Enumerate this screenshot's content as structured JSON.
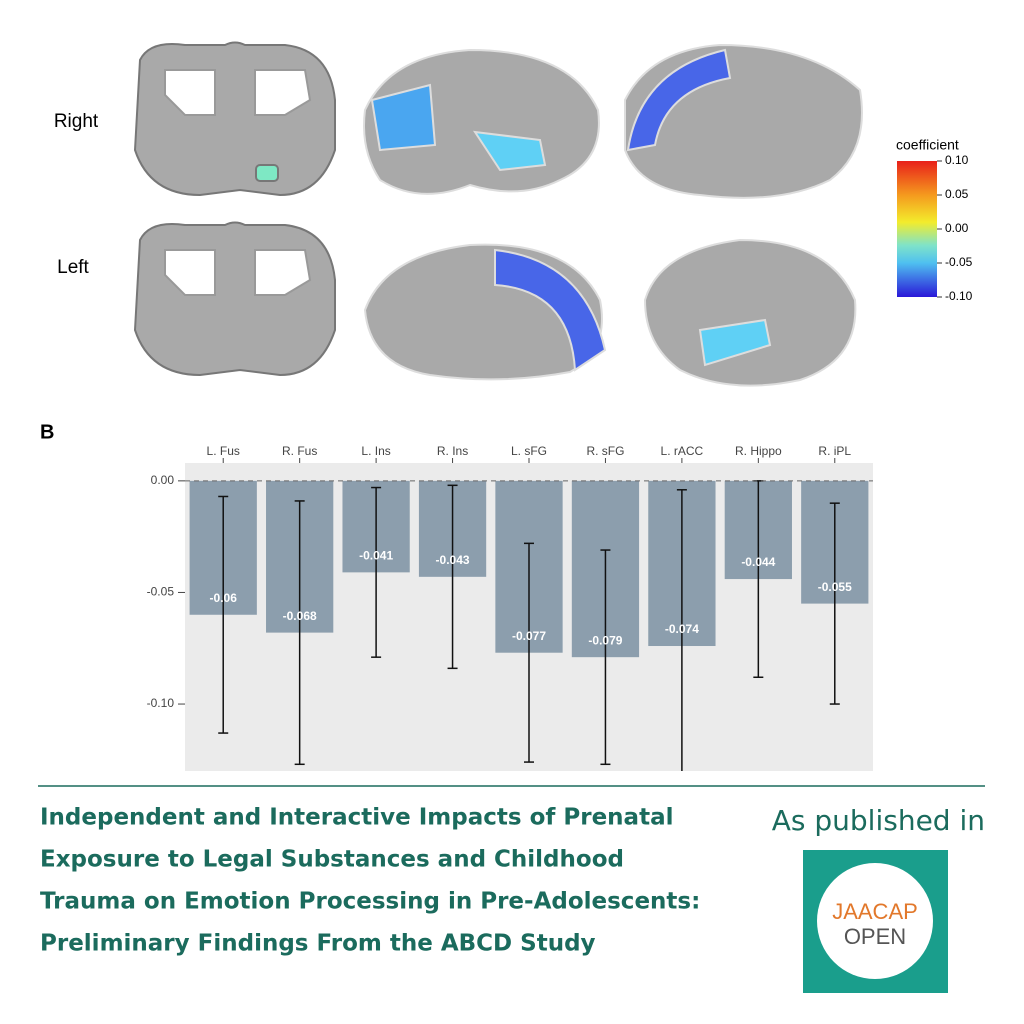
{
  "panel_a": {
    "row_labels": [
      "Right",
      "Left"
    ],
    "colorbar": {
      "title": "coefficient",
      "lim": [
        -0.1,
        0.1
      ],
      "ticks": [
        {
          "value": 0.1,
          "label": "0.10"
        },
        {
          "value": 0.05,
          "label": "0.05"
        },
        {
          "value": 0,
          "label": "0.00"
        },
        {
          "value": -0.05,
          "label": "-0.05"
        },
        {
          "value": -0.1,
          "label": "-0.10"
        }
      ]
    }
  },
  "chart_data": {
    "type": "bar",
    "panel_label": "B",
    "categories": [
      "L. Fus",
      "R. Fus",
      "L. Ins",
      "R. Ins",
      "L. sFG",
      "R. sFG",
      "L. rACC",
      "R. Hippo",
      "R. iPL"
    ],
    "values": [
      -0.06,
      -0.068,
      -0.041,
      -0.043,
      -0.077,
      -0.079,
      -0.074,
      -0.044,
      -0.055
    ],
    "value_labels": [
      "-0.06",
      "-0.068",
      "-0.041",
      "-0.043",
      "-0.077",
      "-0.079",
      "-0.074",
      "-0.044",
      "-0.055"
    ],
    "errors": [
      0.053,
      0.059,
      0.038,
      0.041,
      0.049,
      0.048,
      0.07,
      0.044,
      0.045
    ],
    "color": "#8c9ead",
    "ylim": [
      -0.13,
      0.008
    ],
    "yticks": [
      {
        "value": 0,
        "label": "0.00"
      },
      {
        "value": -0.05,
        "label": "-0.05"
      },
      {
        "value": -0.1,
        "label": "-0.10"
      }
    ]
  },
  "footer": {
    "title_lines": [
      "Independent and Interactive Impacts of Prenatal",
      "Exposure to Legal Substances and Childhood",
      "Trauma on Emotion Processing in Pre-Adolescents:",
      "Preliminary Findings From the ABCD Study"
    ],
    "published": "As published in",
    "logo_lines": [
      "JAACAP",
      "OPEN"
    ]
  }
}
